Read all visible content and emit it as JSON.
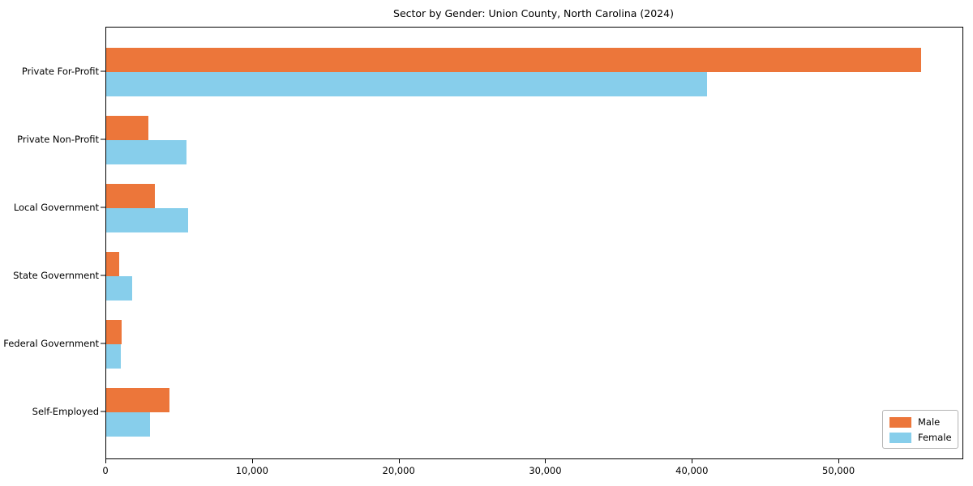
{
  "chart_data": {
    "type": "bar",
    "orientation": "horizontal",
    "title": "Sector by Gender: Union County, North Carolina (2024)",
    "categories": [
      "Private For-Profit",
      "Private Non-Profit",
      "Local Government",
      "State Government",
      "Federal Government",
      "Self-Employed"
    ],
    "series": [
      {
        "name": "Male",
        "color": "#ec763a",
        "values": [
          55600,
          2900,
          3300,
          900,
          1050,
          4300
        ]
      },
      {
        "name": "Female",
        "color": "#87ceeb",
        "values": [
          41000,
          5500,
          5600,
          1750,
          1000,
          3000
        ]
      }
    ],
    "xlabel": "",
    "ylabel": "",
    "xlim": [
      0,
      58400
    ],
    "xticks": [
      0,
      10000,
      20000,
      30000,
      40000,
      50000
    ],
    "xtick_labels": [
      "0",
      "10,000",
      "20,000",
      "30,000",
      "40,000",
      "50,000"
    ],
    "legend_position": "lower-right",
    "grid": false,
    "colors": {
      "male": "#ec763a",
      "female": "#87ceeb",
      "frame": "#000000",
      "legend_border": "#b3b3b3"
    }
  }
}
